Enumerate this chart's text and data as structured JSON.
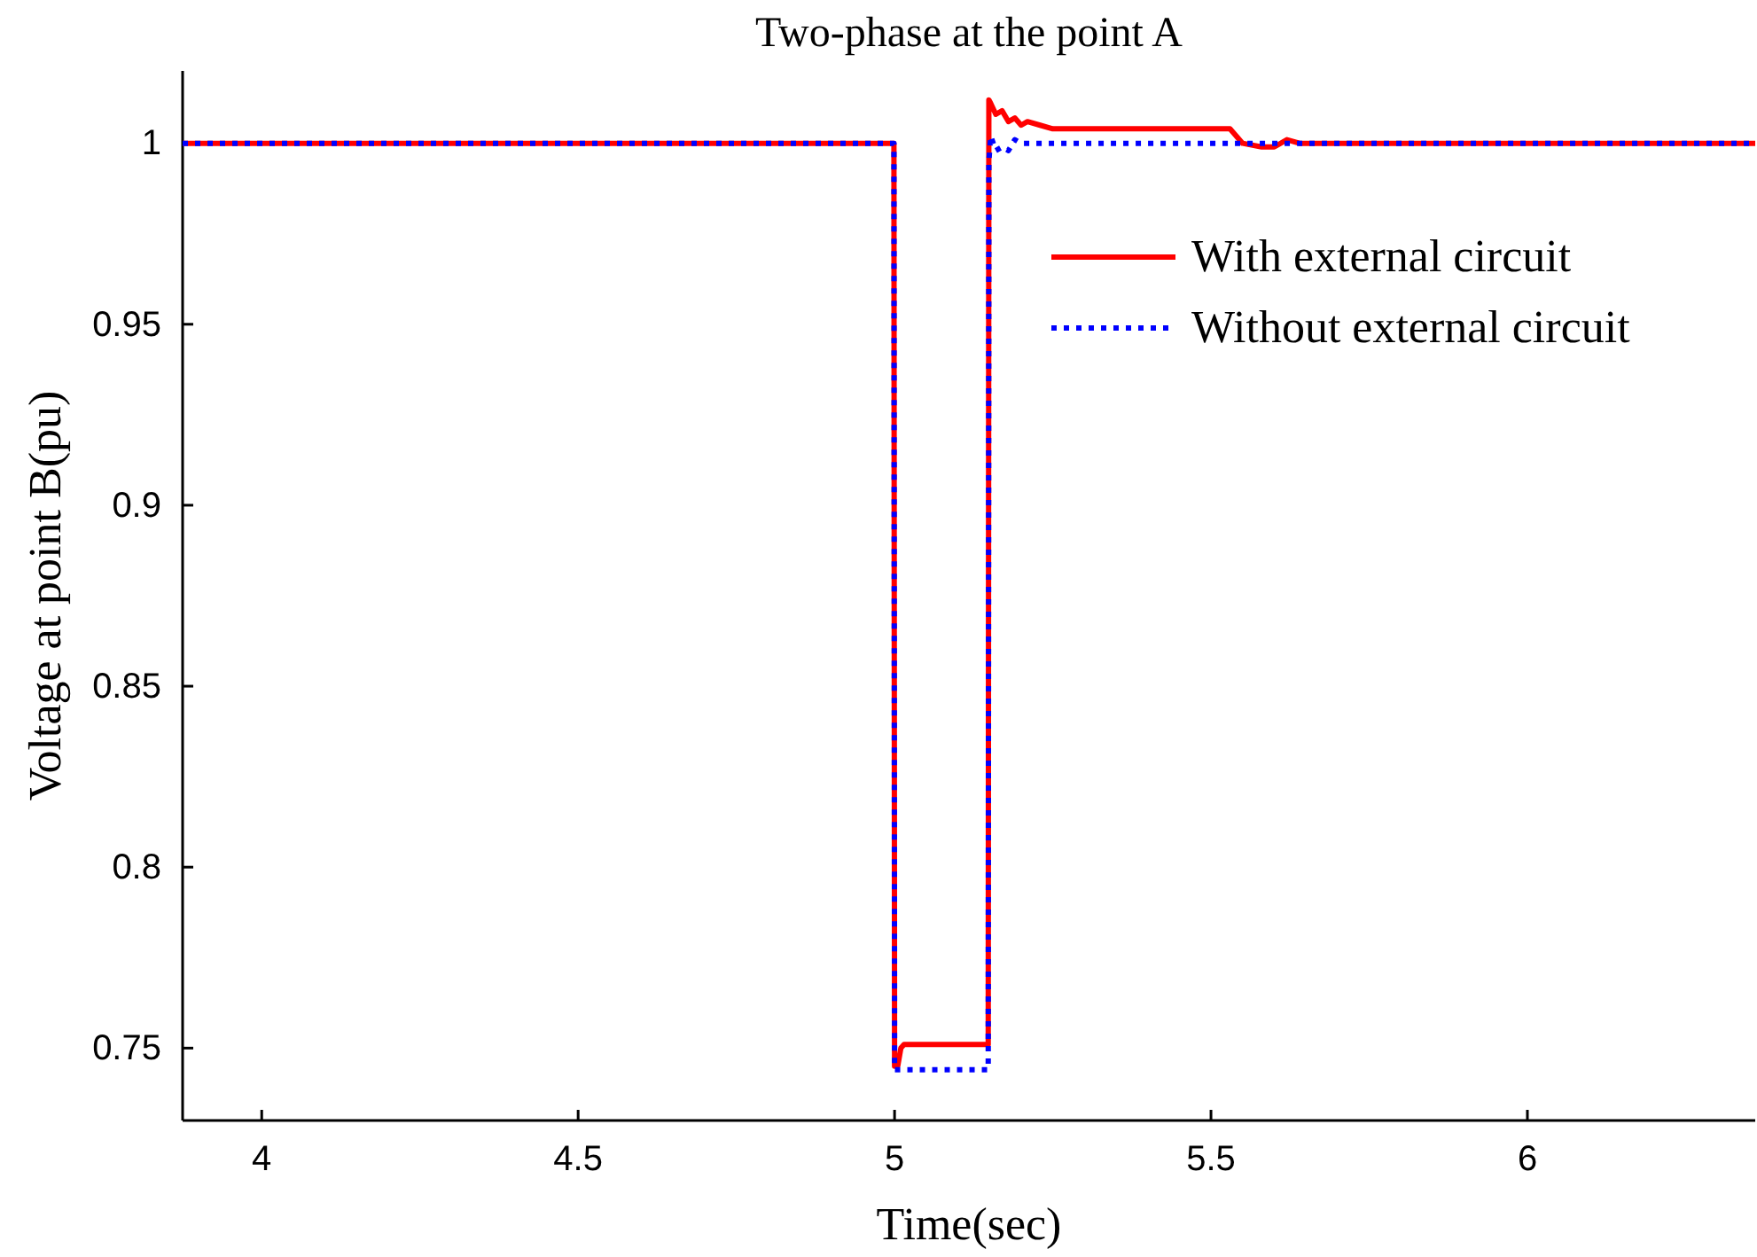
{
  "chart_data": {
    "type": "line",
    "title": "Two-phase at the point A",
    "xlabel": "Time(sec)",
    "ylabel": "Voltage at point B(pu)",
    "xlim": [
      3.875,
      6.36
    ],
    "ylim": [
      0.73,
      1.02
    ],
    "xticks": [
      4,
      4.5,
      5,
      5.5,
      6
    ],
    "yticks": [
      0.75,
      0.8,
      0.85,
      0.9,
      0.95,
      1
    ],
    "grid": false,
    "legend": "top right",
    "series": [
      {
        "name": "With external circuit",
        "color": "#ff0000",
        "line_style": "solid",
        "x": [
          3.875,
          4.999,
          5.0,
          5.005,
          5.01,
          5.015,
          5.148,
          5.149,
          5.152,
          5.16,
          5.17,
          5.18,
          5.19,
          5.2,
          5.21,
          5.23,
          5.25,
          5.3,
          5.4,
          5.5,
          5.53,
          5.55,
          5.58,
          5.6,
          5.62,
          5.64,
          5.7,
          6.0,
          6.36
        ],
        "values": [
          1,
          1,
          0.745,
          0.745,
          0.75,
          0.751,
          0.751,
          1.012,
          1.011,
          1.008,
          1.009,
          1.006,
          1.007,
          1.005,
          1.006,
          1.005,
          1.004,
          1.004,
          1.004,
          1.004,
          1.004,
          1.0,
          0.999,
          0.999,
          1.001,
          1.0,
          1.0,
          1.0,
          1.0
        ]
      },
      {
        "name": "Without external circuit",
        "color": "#0000ff",
        "line_style": "dotted",
        "x": [
          3.875,
          4.999,
          5.0,
          5.148,
          5.149,
          5.152,
          5.16,
          5.17,
          5.18,
          5.19,
          5.2,
          5.25,
          5.5,
          6.0,
          6.36
        ],
        "values": [
          1,
          1,
          0.744,
          0.744,
          0.995,
          1.002,
          0.998,
          0.999,
          0.998,
          1.001,
          1.0,
          1.0,
          1.0,
          1.0,
          1.0
        ]
      }
    ]
  }
}
